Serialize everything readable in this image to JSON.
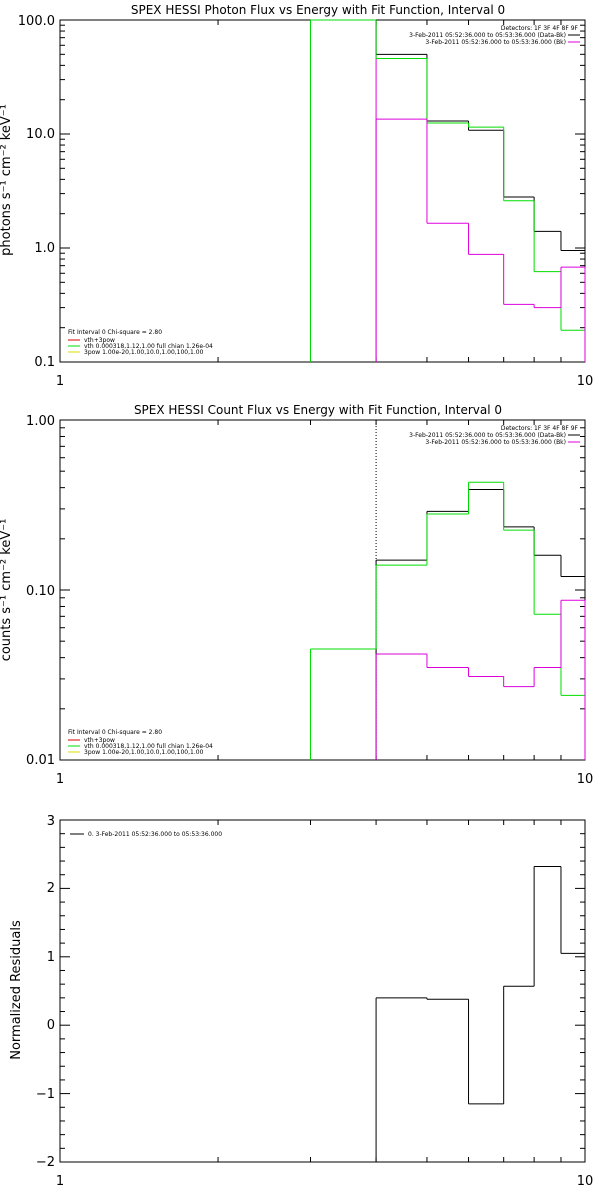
{
  "colors": {
    "data": "#000000",
    "total": "#00dd00",
    "vth": "#dd00dd",
    "spow": "#dddd00",
    "resid": "#000000"
  },
  "chart_data": [
    {
      "type": "line",
      "title": "SPEX HESSI Photon Flux vs Energy with Fit Function, Interval 0",
      "xlabel": "",
      "ylabel": "photons s⁻¹ cm⁻² keV⁻¹",
      "xscale": "log",
      "yscale": "log",
      "xlim": [
        1,
        10
      ],
      "ylim": [
        0.1,
        100
      ],
      "xticks": [
        "1",
        "10"
      ],
      "yticks": [
        "0.1",
        "1.0",
        "10.0",
        "100.0"
      ],
      "top_legend": [
        "Detectors: 1F 3F 4F 8F 9F",
        "3-Feb-2011 05:52:36.000 to 05:53:36.000 (Data-Bk)",
        "3-Feb-2011 05:52:36.000 to 05:53:36.000 (Bk)"
      ],
      "fit_legend": [
        "Fit Interval 0   Chi-square = 2.80",
        "vth+3pow",
        "vth 0.000318,1.12,1.00  full chian 1.26e-04",
        "3pow 1.00e-20,1.00,10.0,1.00,100,1.00"
      ],
      "series": [
        {
          "name": "Data-Bk",
          "color": "#000000",
          "edges": [
            3,
            4,
            5,
            6,
            7,
            8,
            9,
            10
          ],
          "values": [
            100,
            50,
            13,
            10.8,
            2.8,
            1.4,
            0.95
          ]
        },
        {
          "name": "vth+3pow",
          "color": "#00dd00",
          "edges": [
            3,
            4,
            5,
            6,
            7,
            8,
            9,
            10
          ],
          "values": [
            100,
            46,
            12.5,
            11.5,
            2.6,
            0.62,
            0.19
          ]
        },
        {
          "name": "Bk",
          "color": "#dd00dd",
          "edges": [
            4,
            5,
            6,
            7,
            8,
            9,
            10
          ],
          "values": [
            13.5,
            1.65,
            0.88,
            0.32,
            0.3,
            0.68
          ]
        }
      ],
      "vlines": [
        {
          "x": 3,
          "color": "#00dd00"
        },
        {
          "x": 4,
          "color": "#dd00dd"
        }
      ]
    },
    {
      "type": "line",
      "title": "SPEX HESSI Count Flux vs Energy with Fit Function, Interval 0",
      "xlabel": "",
      "ylabel": "counts s⁻¹ cm⁻² keV⁻¹",
      "xscale": "log",
      "yscale": "log",
      "xlim": [
        1,
        10
      ],
      "ylim": [
        0.01,
        1.0
      ],
      "xticks": [
        "1",
        "10"
      ],
      "yticks": [
        "0.01",
        "0.10",
        "1.00"
      ],
      "top_legend": [
        "Detectors: 1F 3F 4F 8F 9F",
        "3-Feb-2011 05:52:36.000 to 05:53:36.000 (Data-Bk)",
        "3-Feb-2011 05:52:36.000 to 05:53:36.000 (Bk)"
      ],
      "fit_legend": [
        "Fit Interval 0   Chi-square = 2.80",
        "vth+3pow",
        "vth 0.000318,1.12,1.00  full chian 1.26e-04",
        "3pow 1.00e-20,1.00,10.0,1.00,100,1.00"
      ],
      "series": [
        {
          "name": "Data-Bk",
          "color": "#000000",
          "edges": [
            4,
            5,
            6,
            7,
            8,
            9,
            10
          ],
          "values": [
            0.15,
            0.29,
            0.39,
            0.235,
            0.16,
            0.12
          ]
        },
        {
          "name": "vth+3pow",
          "color": "#00dd00",
          "edges": [
            3,
            4,
            5,
            6,
            7,
            8,
            9,
            10
          ],
          "values": [
            0.045,
            0.14,
            0.28,
            0.43,
            0.225,
            0.072,
            0.024
          ]
        },
        {
          "name": "Bk",
          "color": "#dd00dd",
          "edges": [
            4,
            5,
            6,
            7,
            8,
            9,
            10
          ],
          "values": [
            0.042,
            0.035,
            0.031,
            0.027,
            0.035,
            0.087
          ]
        }
      ],
      "vlines": [
        {
          "x": 4,
          "color": "#000000",
          "dotted": true
        }
      ]
    },
    {
      "type": "line",
      "title": "",
      "xlabel": "",
      "ylabel": "Normalized Residuals",
      "xscale": "log",
      "yscale": "linear",
      "xlim": [
        1,
        10
      ],
      "ylim": [
        -2,
        3
      ],
      "xticks": [
        "1",
        "10"
      ],
      "yticks": [
        "−2",
        "−1",
        "0",
        "1",
        "2",
        "3"
      ],
      "legend": "0. 3-Feb-2011 05:52:36.000 to 05:53:36.000",
      "series": [
        {
          "name": "0. 3-Feb-2011 05:52:36.000 to 05:53:36.000",
          "color": "#000000",
          "edges": [
            4,
            5,
            6,
            7,
            8,
            9,
            10
          ],
          "values": [
            0.4,
            0.38,
            -1.15,
            0.57,
            2.32,
            1.05
          ]
        }
      ]
    }
  ]
}
